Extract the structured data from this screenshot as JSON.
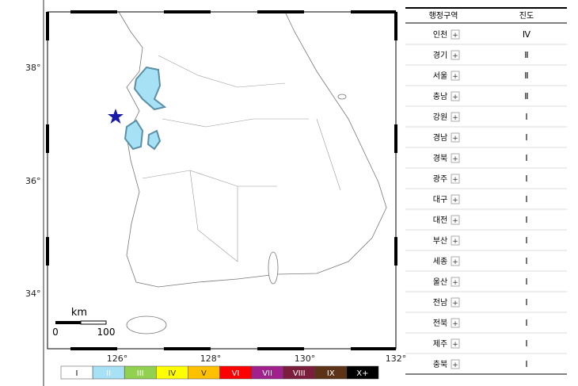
{
  "map": {
    "lat_labels": [
      "38°",
      "36°",
      "34°"
    ],
    "lon_labels": [
      "126°",
      "128°",
      "130°",
      "132°"
    ],
    "scale": {
      "unit": "km",
      "labels": [
        "0",
        "100"
      ]
    }
  },
  "legend": [
    "I",
    "II",
    "III",
    "IV",
    "V",
    "VI",
    "VII",
    "VIII",
    "IX",
    "X+"
  ],
  "table": {
    "header": [
      "행정구역",
      "진도"
    ],
    "expand_icon": "+",
    "rows": [
      [
        "인천",
        "Ⅳ"
      ],
      [
        "경기",
        "Ⅱ"
      ],
      [
        "서울",
        "Ⅱ"
      ],
      [
        "충남",
        "Ⅱ"
      ],
      [
        "강원",
        "Ⅰ"
      ],
      [
        "경남",
        "Ⅰ"
      ],
      [
        "경북",
        "Ⅰ"
      ],
      [
        "광주",
        "Ⅰ"
      ],
      [
        "대구",
        "Ⅰ"
      ],
      [
        "대전",
        "Ⅰ"
      ],
      [
        "부산",
        "Ⅰ"
      ],
      [
        "세종",
        "Ⅰ"
      ],
      [
        "울산",
        "Ⅰ"
      ],
      [
        "전남",
        "Ⅰ"
      ],
      [
        "전북",
        "Ⅰ"
      ],
      [
        "제주",
        "Ⅰ"
      ],
      [
        "충북",
        "Ⅰ"
      ]
    ]
  }
}
